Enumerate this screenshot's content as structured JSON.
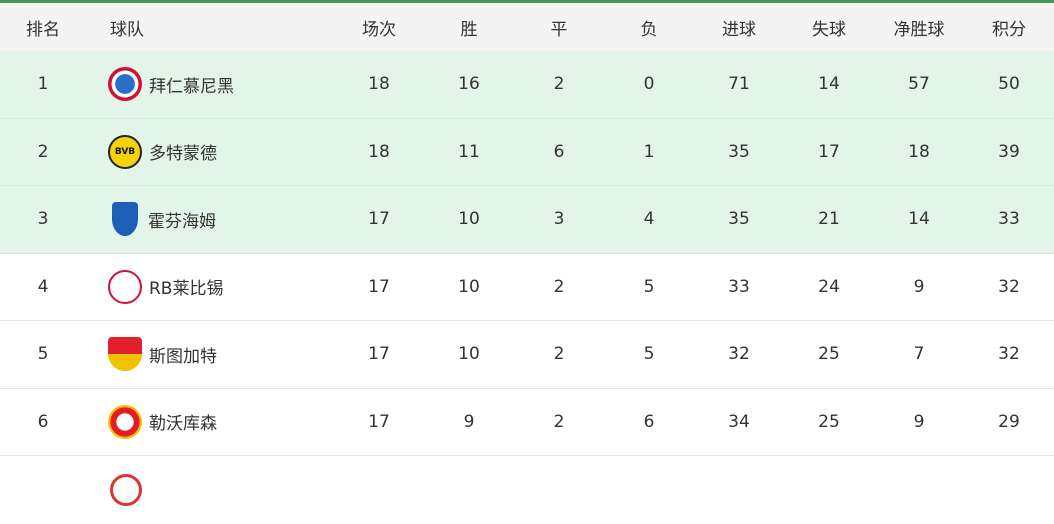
{
  "header": [
    "排名",
    "球队",
    "场次",
    "胜",
    "平",
    "负",
    "进球",
    "失球",
    "净胜球",
    "积分"
  ],
  "rows": [
    {
      "rank": "1",
      "team": "拜仁慕尼黑",
      "logo": "bayern-logo",
      "p": "18",
      "w": "16",
      "d": "2",
      "l": "0",
      "gf": "71",
      "ga": "14",
      "gd": "57",
      "pts": "50"
    },
    {
      "rank": "2",
      "team": "多特蒙德",
      "logo": "dortmund-logo",
      "p": "18",
      "w": "11",
      "d": "6",
      "l": "1",
      "gf": "35",
      "ga": "17",
      "gd": "18",
      "pts": "39"
    },
    {
      "rank": "3",
      "team": "霍芬海姆",
      "logo": "hoffenheim-logo",
      "p": "17",
      "w": "10",
      "d": "3",
      "l": "4",
      "gf": "35",
      "ga": "21",
      "gd": "14",
      "pts": "33"
    },
    {
      "rank": "4",
      "team": "RB莱比锡",
      "logo": "leipzig-logo",
      "p": "17",
      "w": "10",
      "d": "2",
      "l": "5",
      "gf": "33",
      "ga": "24",
      "gd": "9",
      "pts": "32"
    },
    {
      "rank": "5",
      "team": "斯图加特",
      "logo": "stuttgart-logo",
      "p": "17",
      "w": "10",
      "d": "2",
      "l": "5",
      "gf": "32",
      "ga": "25",
      "gd": "7",
      "pts": "32"
    },
    {
      "rank": "6",
      "team": "勒沃库森",
      "logo": "leverkusen-logo",
      "p": "17",
      "w": "9",
      "d": "2",
      "l": "6",
      "gf": "34",
      "ga": "25",
      "gd": "9",
      "pts": "29"
    }
  ],
  "logo_text": {
    "dortmund": "BVB"
  },
  "colors": {
    "highlight": "#e3f4e8",
    "accent": "#3f9a5b"
  }
}
